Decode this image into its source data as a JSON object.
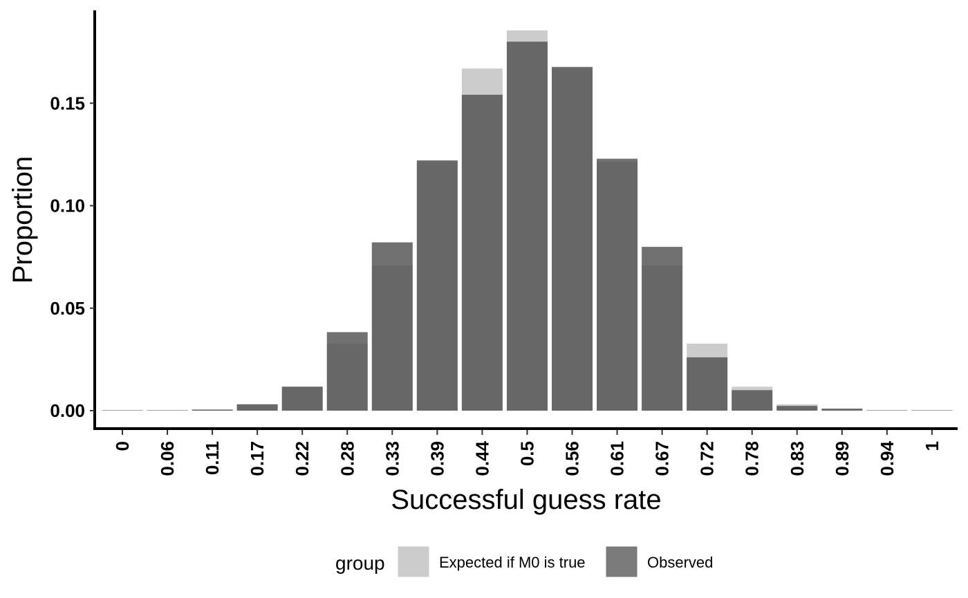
{
  "chart_data": {
    "type": "bar",
    "title": "",
    "xlabel": "Successful guess rate",
    "ylabel": "Proportion",
    "ylim": [
      -0.009,
      0.195
    ],
    "yticks": [
      0.0,
      0.05,
      0.1,
      0.15
    ],
    "ytick_labels": [
      "0.00",
      "0.05",
      "0.10",
      "0.15"
    ],
    "grid": false,
    "categories": [
      "0",
      "0.06",
      "0.11",
      "0.17",
      "0.22",
      "0.28",
      "0.33",
      "0.39",
      "0.44",
      "0.5",
      "0.56",
      "0.61",
      "0.67",
      "0.72",
      "0.78",
      "0.83",
      "0.89",
      "0.94",
      "1"
    ],
    "series": [
      {
        "name": "Expected if M0 is true",
        "color": "#cccccc",
        "values": [
          0.0,
          0.0001,
          0.0006,
          0.0031,
          0.0117,
          0.0327,
          0.0708,
          0.1214,
          0.1669,
          0.1855,
          0.1669,
          0.1214,
          0.0708,
          0.0327,
          0.0117,
          0.0031,
          0.0006,
          0.0001,
          0.0
        ]
      },
      {
        "name": "Observed",
        "color": "#4d4d4d",
        "opacity": 0.8,
        "values": [
          0.0,
          0.0001,
          0.0005,
          0.0031,
          0.0117,
          0.0383,
          0.0821,
          0.1221,
          0.1541,
          0.18,
          0.1677,
          0.1229,
          0.0799,
          0.026,
          0.01,
          0.0023,
          0.001,
          0.0,
          0.0
        ]
      }
    ],
    "legend": {
      "title": "group",
      "position": "bottom",
      "items": [
        {
          "label": "Expected if M0 is true",
          "color": "#cccccc"
        },
        {
          "label": "Observed",
          "color": "#7a7a7a"
        }
      ]
    }
  }
}
